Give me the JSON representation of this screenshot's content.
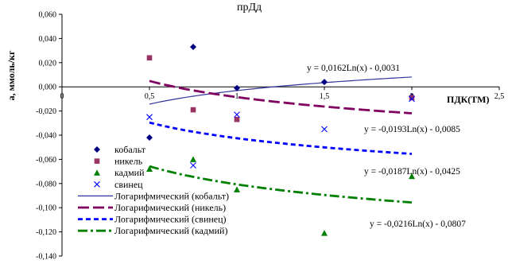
{
  "chart_data": {
    "type": "scatter",
    "title": "прДд",
    "xlabel": "ПДК(ТМ)",
    "ylabel": "a, ммоль/кг",
    "xlim": [
      0,
      2.5
    ],
    "ylim": [
      -0.14,
      0.06
    ],
    "x_ticks": [
      "0",
      "0,5",
      "1",
      "1,5",
      "2",
      "2,5"
    ],
    "y_ticks": [
      "0,060",
      "0,040",
      "0,020",
      "0,000",
      "-0,020",
      "-0,040",
      "-0,060",
      "-0,080",
      "-0,100",
      "-0,120",
      "-0,140"
    ],
    "grid": false,
    "legend_position": "bottom-left",
    "series": [
      {
        "name": "кобальт",
        "marker": "diamond",
        "color": "#000080",
        "points": [
          [
            0.5,
            -0.042
          ],
          [
            0.75,
            0.033
          ],
          [
            1.0,
            -0.001
          ],
          [
            1.5,
            0.004
          ],
          [
            2.0,
            -0.008
          ]
        ]
      },
      {
        "name": "никель",
        "marker": "square",
        "color": "#993366",
        "points": [
          [
            0.5,
            0.024
          ],
          [
            0.75,
            -0.019
          ],
          [
            1.0,
            -0.027
          ],
          [
            2.0,
            -0.009
          ]
        ]
      },
      {
        "name": "кадмий",
        "marker": "triangle",
        "color": "#008000",
        "points": [
          [
            0.5,
            -0.068
          ],
          [
            0.75,
            -0.06
          ],
          [
            1.0,
            -0.085
          ],
          [
            1.5,
            -0.121
          ],
          [
            2.0,
            -0.074
          ]
        ]
      },
      {
        "name": "свинец",
        "marker": "x",
        "color": "#0000ff",
        "points": [
          [
            0.5,
            -0.025
          ],
          [
            0.75,
            -0.065
          ],
          [
            1.0,
            -0.023
          ],
          [
            1.5,
            -0.035
          ],
          [
            2.0,
            -0.01
          ]
        ]
      }
    ],
    "trendlines": [
      {
        "name": "Логарифмический (кобальт)",
        "a": 0.0162,
        "b": -0.0031,
        "color": "#333399",
        "dash": "solid",
        "equation": "y = 0,0162Ln(x) - 0,0031"
      },
      {
        "name": "Логарифмический (никель)",
        "a": -0.0193,
        "b": -0.0085,
        "color": "#800060",
        "dash": "longdash",
        "equation": "y = -0,0193Ln(x) - 0,0085"
      },
      {
        "name": "Логарифмический (свинец)",
        "a": -0.0187,
        "b": -0.0425,
        "color": "#0000ff",
        "dash": "shortdash",
        "equation": "y = -0,0187Ln(x) - 0,0425"
      },
      {
        "name": "Логарифмический (кадмий)",
        "a": -0.0216,
        "b": -0.0807,
        "color": "#008000",
        "dash": "dashdot",
        "equation": "y = -0,0216Ln(x) - 0,0807"
      }
    ]
  }
}
